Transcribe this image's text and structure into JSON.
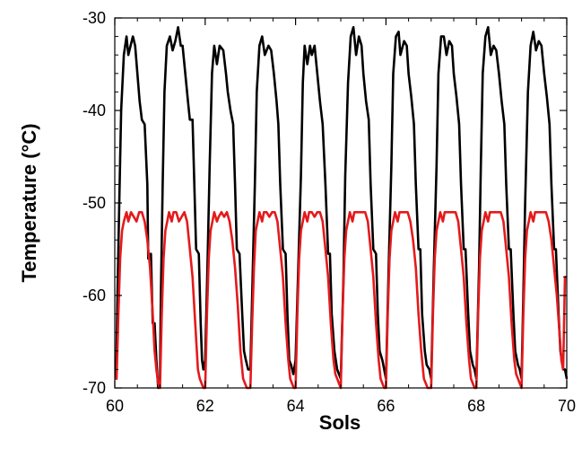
{
  "chart_data": {
    "type": "line",
    "title": "",
    "xlabel": "Sols",
    "ylabel": "Temperature (°C)",
    "xlim": [
      60,
      70
    ],
    "ylim": [
      -70,
      -30
    ],
    "x_ticks": [
      60,
      62,
      64,
      66,
      68,
      70
    ],
    "y_ticks": [
      -30,
      -40,
      -50,
      -60,
      -70
    ],
    "x_tick_labels": [
      "60",
      "62",
      "64",
      "66",
      "68",
      "70"
    ],
    "y_tick_labels": [
      "-30",
      "-40",
      "-50",
      "-60",
      "-70"
    ],
    "grid": false,
    "legend": "none",
    "series": [
      {
        "color": "#000000",
        "x": [
          60.0,
          60.03,
          60.06,
          60.1,
          60.14,
          60.2,
          60.26,
          60.3,
          60.4,
          60.45,
          60.5,
          60.55,
          60.6,
          60.66,
          60.72,
          60.74,
          60.8,
          60.84,
          60.88,
          60.92,
          60.96,
          61.0,
          61.02,
          61.06,
          61.1,
          61.15,
          61.22,
          61.28,
          61.34,
          61.4,
          61.46,
          61.5,
          61.56,
          61.62,
          61.66,
          61.72,
          61.76,
          61.8,
          61.86,
          61.9,
          61.93,
          61.96,
          62.0,
          62.05,
          62.1,
          62.15,
          62.2,
          62.26,
          62.32,
          62.4,
          62.46,
          62.5,
          62.56,
          62.62,
          62.66,
          62.7,
          62.76,
          62.82,
          62.86,
          62.9,
          62.95,
          63.0,
          63.05,
          63.1,
          63.14,
          63.2,
          63.26,
          63.32,
          63.4,
          63.46,
          63.52,
          63.58,
          63.62,
          63.66,
          63.72,
          63.78,
          63.82,
          63.86,
          63.9,
          63.95,
          64.0,
          64.06,
          64.12,
          64.16,
          64.2,
          64.26,
          64.32,
          64.36,
          64.42,
          64.48,
          64.54,
          64.6,
          64.66,
          64.72,
          64.76,
          64.8,
          64.86,
          64.92,
          64.96,
          65.0,
          65.06,
          65.1,
          65.16,
          65.22,
          65.28,
          65.34,
          65.4,
          65.46,
          65.5,
          65.56,
          65.62,
          65.66,
          65.72,
          65.78,
          65.82,
          65.86,
          65.92,
          65.96,
          66.0,
          66.06,
          66.12,
          66.16,
          66.22,
          66.28,
          66.32,
          66.4,
          66.46,
          66.5,
          66.56,
          66.62,
          66.66,
          66.72,
          66.76,
          66.8,
          66.86,
          66.9,
          66.96,
          67.0,
          67.06,
          67.12,
          67.16,
          67.22,
          67.28,
          67.34,
          67.4,
          67.46,
          67.5,
          67.56,
          67.62,
          67.66,
          67.72,
          67.76,
          67.82,
          67.86,
          67.92,
          67.96,
          68.0,
          68.06,
          68.1,
          68.14,
          68.2,
          68.26,
          68.32,
          68.38,
          68.44,
          68.5,
          68.56,
          68.62,
          68.66,
          68.72,
          68.76,
          68.82,
          68.86,
          68.92,
          68.96,
          69.0,
          69.04,
          69.08,
          69.14,
          69.2,
          69.26,
          69.32,
          69.38,
          69.44,
          69.5,
          69.56,
          69.62,
          69.66,
          69.72,
          69.76,
          69.82,
          69.86,
          69.92,
          69.96,
          70.0
        ],
        "y": [
          -69.0,
          -69.0,
          -60.0,
          -50.0,
          -40.0,
          -34.0,
          -32.0,
          -34.0,
          -32.0,
          -33.0,
          -36.0,
          -39.0,
          -41.0,
          -41.5,
          -48.0,
          -56.0,
          -55.5,
          -63.0,
          -63.0,
          -67.0,
          -70.0,
          -69.0,
          -60.0,
          -48.0,
          -38.0,
          -33.0,
          -32.0,
          -33.5,
          -32.5,
          -31.0,
          -33.0,
          -33.0,
          -36.0,
          -39.0,
          -41.0,
          -41.0,
          -48.0,
          -55.0,
          -55.5,
          -63.0,
          -67.0,
          -68.0,
          -67.0,
          -57.0,
          -46.0,
          -36.0,
          -33.0,
          -35.0,
          -33.0,
          -33.5,
          -36.0,
          -38.0,
          -40.0,
          -41.5,
          -48.0,
          -55.0,
          -55.5,
          -62.0,
          -66.0,
          -67.0,
          -68.0,
          -68.0,
          -58.0,
          -48.0,
          -38.0,
          -33.0,
          -32.0,
          -34.0,
          -33.0,
          -33.5,
          -36.0,
          -39.0,
          -41.5,
          -48.0,
          -55.0,
          -55.5,
          -62.0,
          -67.0,
          -67.5,
          -68.5,
          -67.0,
          -57.0,
          -47.0,
          -37.0,
          -33.0,
          -35.0,
          -33.0,
          -34.0,
          -33.0,
          -36.0,
          -39.0,
          -41.5,
          -48.0,
          -55.5,
          -55.5,
          -62.0,
          -66.0,
          -68.0,
          -68.5,
          -69.0,
          -58.0,
          -47.0,
          -37.0,
          -32.0,
          -31.0,
          -34.0,
          -32.0,
          -33.0,
          -36.0,
          -39.0,
          -41.0,
          -48.0,
          -55.0,
          -55.5,
          -62.0,
          -66.0,
          -67.0,
          -68.0,
          -69.0,
          -57.0,
          -46.0,
          -36.0,
          -32.0,
          -31.5,
          -34.0,
          -32.5,
          -33.0,
          -36.0,
          -38.5,
          -41.5,
          -48.0,
          -55.0,
          -55.0,
          -62.0,
          -66.0,
          -67.5,
          -68.0,
          -69.0,
          -57.0,
          -46.0,
          -36.0,
          -32.0,
          -32.0,
          -34.0,
          -32.5,
          -33.0,
          -36.0,
          -38.5,
          -41.5,
          -48.0,
          -55.0,
          -55.0,
          -62.0,
          -66.0,
          -67.5,
          -68.0,
          -69.0,
          -57.0,
          -46.0,
          -36.0,
          -32.0,
          -31.0,
          -34.0,
          -33.0,
          -33.5,
          -36.0,
          -39.0,
          -41.5,
          -48.0,
          -55.0,
          -55.0,
          -62.0,
          -66.0,
          -67.5,
          -68.0,
          -69.0,
          -60.0,
          -50.0,
          -38.0,
          -33.0,
          -31.5,
          -33.5,
          -32.5,
          -33.0,
          -36.0,
          -38.5,
          -41.5,
          -48.0,
          -55.0,
          -55.0,
          -62.0,
          -66.0,
          -68.0,
          -68.0,
          -69.0
        ]
      },
      {
        "color": "#e41a1c",
        "x": [
          60.0,
          60.04,
          60.08,
          60.12,
          60.16,
          60.2,
          60.26,
          60.3,
          60.36,
          60.42,
          60.48,
          60.54,
          60.6,
          60.66,
          60.72,
          60.78,
          60.84,
          60.88,
          60.92,
          60.96,
          61.0,
          61.04,
          61.08,
          61.12,
          61.16,
          61.2,
          61.26,
          61.3,
          61.36,
          61.42,
          61.48,
          61.54,
          61.6,
          61.66,
          61.72,
          61.78,
          61.84,
          61.88,
          61.92,
          61.96,
          62.0,
          62.04,
          62.08,
          62.12,
          62.16,
          62.2,
          62.26,
          62.3,
          62.36,
          62.42,
          62.48,
          62.54,
          62.6,
          62.66,
          62.72,
          62.78,
          62.84,
          62.88,
          62.92,
          62.96,
          63.0,
          63.04,
          63.08,
          63.12,
          63.16,
          63.2,
          63.26,
          63.3,
          63.36,
          63.42,
          63.48,
          63.54,
          63.6,
          63.66,
          63.72,
          63.78,
          63.84,
          63.88,
          63.92,
          63.96,
          64.0,
          64.04,
          64.08,
          64.12,
          64.16,
          64.2,
          64.26,
          64.3,
          64.36,
          64.42,
          64.48,
          64.54,
          64.6,
          64.66,
          64.72,
          64.78,
          64.84,
          64.88,
          64.92,
          64.96,
          65.0,
          65.04,
          65.08,
          65.12,
          65.16,
          65.2,
          65.26,
          65.3,
          65.36,
          65.42,
          65.48,
          65.54,
          65.6,
          65.66,
          65.72,
          65.78,
          65.84,
          65.88,
          65.92,
          65.96,
          66.0,
          66.04,
          66.08,
          66.12,
          66.16,
          66.2,
          66.26,
          66.3,
          66.36,
          66.42,
          66.48,
          66.54,
          66.6,
          66.66,
          66.72,
          66.78,
          66.84,
          66.88,
          66.92,
          66.96,
          67.0,
          67.04,
          67.08,
          67.12,
          67.16,
          67.2,
          67.26,
          67.3,
          67.36,
          67.42,
          67.48,
          67.54,
          67.6,
          67.66,
          67.72,
          67.78,
          67.84,
          67.88,
          67.92,
          67.96,
          68.0,
          68.04,
          68.08,
          68.12,
          68.16,
          68.2,
          68.26,
          68.3,
          68.36,
          68.42,
          68.48,
          68.54,
          68.6,
          68.66,
          68.72,
          68.78,
          68.84,
          68.88,
          68.92,
          68.96,
          69.0,
          69.04,
          69.08,
          69.12,
          69.16,
          69.2,
          69.26,
          69.3,
          69.36,
          69.42,
          69.48,
          69.54,
          69.6,
          69.66,
          69.72,
          69.78,
          69.84,
          69.88,
          69.92,
          69.96,
          70.0
        ],
        "y": [
          -69.0,
          -69.0,
          -62.0,
          -56.0,
          -53.0,
          -52.0,
          -51.0,
          -52.0,
          -51.0,
          -51.5,
          -52.0,
          -51.0,
          -51.0,
          -52.0,
          -54.0,
          -57.0,
          -62.0,
          -66.0,
          -68.0,
          -69.5,
          -70.0,
          -62.0,
          -56.0,
          -53.0,
          -52.0,
          -51.0,
          -52.0,
          -51.0,
          -51.0,
          -52.0,
          -51.5,
          -51.0,
          -52.0,
          -55.0,
          -58.0,
          -63.0,
          -68.0,
          -69.0,
          -69.5,
          -70.0,
          -70.0,
          -62.0,
          -56.0,
          -53.0,
          -52.0,
          -51.0,
          -52.0,
          -51.5,
          -51.0,
          -51.5,
          -51.0,
          -52.0,
          -54.0,
          -57.0,
          -61.0,
          -66.0,
          -69.0,
          -69.5,
          -70.0,
          -70.0,
          -70.0,
          -63.0,
          -57.0,
          -53.0,
          -52.0,
          -51.0,
          -52.0,
          -51.0,
          -51.0,
          -51.5,
          -51.0,
          -51.0,
          -52.0,
          -55.0,
          -58.0,
          -63.0,
          -67.0,
          -69.0,
          -69.5,
          -70.0,
          -70.0,
          -62.0,
          -56.0,
          -53.0,
          -52.0,
          -51.0,
          -52.0,
          -51.0,
          -51.0,
          -51.5,
          -51.0,
          -51.0,
          -52.0,
          -55.0,
          -58.0,
          -63.0,
          -67.0,
          -68.5,
          -69.0,
          -69.5,
          -70.0,
          -62.0,
          -56.0,
          -53.0,
          -52.0,
          -51.0,
          -52.0,
          -51.0,
          -51.0,
          -51.0,
          -51.0,
          -51.0,
          -52.0,
          -55.0,
          -58.0,
          -63.0,
          -67.0,
          -69.0,
          -69.5,
          -70.0,
          -70.0,
          -62.0,
          -56.0,
          -53.0,
          -52.0,
          -51.0,
          -52.0,
          -51.0,
          -51.0,
          -51.0,
          -51.0,
          -52.0,
          -54.0,
          -57.0,
          -62.0,
          -66.0,
          -69.0,
          -69.5,
          -70.0,
          -70.0,
          -70.0,
          -62.0,
          -56.0,
          -53.0,
          -52.0,
          -51.0,
          -52.0,
          -51.0,
          -51.0,
          -51.0,
          -51.0,
          -51.0,
          -52.0,
          -55.0,
          -58.0,
          -63.0,
          -67.0,
          -69.0,
          -69.5,
          -70.0,
          -70.0,
          -62.0,
          -56.0,
          -53.0,
          -52.0,
          -51.0,
          -52.0,
          -51.0,
          -51.0,
          -51.0,
          -51.0,
          -51.0,
          -52.0,
          -55.0,
          -58.0,
          -63.0,
          -67.0,
          -68.5,
          -69.0,
          -69.5,
          -70.0,
          -62.0,
          -56.0,
          -53.0,
          -52.0,
          -51.0,
          -52.0,
          -51.0,
          -51.0,
          -51.0,
          -51.0,
          -51.0,
          -52.0,
          -54.0,
          -57.0,
          -60.0,
          -64.0,
          -67.0,
          -68.0,
          -58.0,
          -58.0
        ]
      }
    ]
  }
}
